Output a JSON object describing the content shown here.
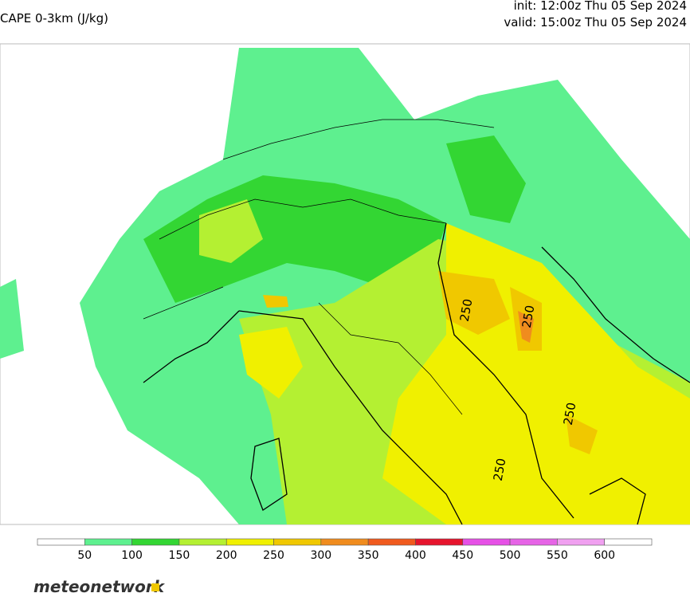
{
  "header": {
    "title": "CAPE 0-3km (J/kg)",
    "init": "init: 12:00z Thu 05 Sep 2024",
    "valid": "valid: 15:00z Thu 05 Sep 2024"
  },
  "map": {
    "contour_labels": [
      "250",
      "250",
      "250",
      "250"
    ]
  },
  "colorbar": {
    "ticks": [
      50,
      100,
      150,
      200,
      250,
      300,
      350,
      400,
      450,
      500,
      550,
      600
    ],
    "colors": [
      "#ffffff",
      "#5ef08f",
      "#33d633",
      "#b4f032",
      "#f0f000",
      "#f0c800",
      "#f08c1e",
      "#f05a1e",
      "#e6142d",
      "#e650e6",
      "#e664e6",
      "#f0a0f0",
      "#ffffff"
    ]
  },
  "brand": "meteonetwork"
}
